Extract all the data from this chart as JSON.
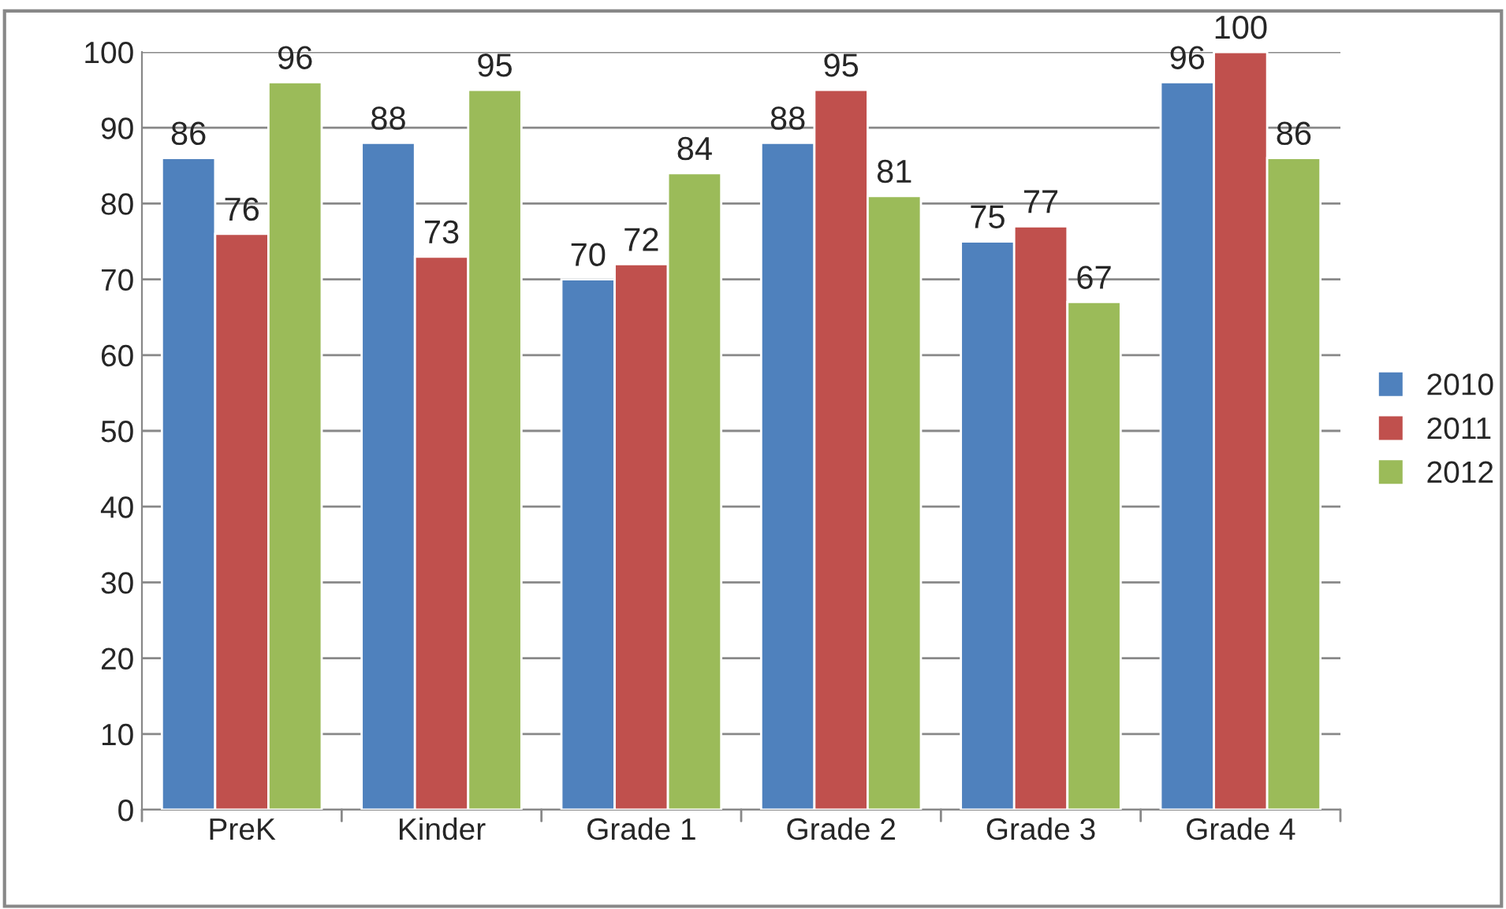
{
  "chart_data": {
    "type": "bar",
    "categories": [
      "PreK",
      "Kinder",
      "Grade 1",
      "Grade 2",
      "Grade 3",
      "Grade 4"
    ],
    "series": [
      {
        "name": "2010",
        "color": "#4f81bd",
        "values": [
          86,
          88,
          70,
          88,
          75,
          96
        ]
      },
      {
        "name": "2011",
        "color": "#c0504d",
        "values": [
          76,
          73,
          72,
          95,
          77,
          100
        ]
      },
      {
        "name": "2012",
        "color": "#9bbb59",
        "values": [
          96,
          95,
          84,
          81,
          67,
          86
        ]
      }
    ],
    "ylim": [
      0,
      100
    ],
    "yticks": [
      0,
      10,
      20,
      30,
      40,
      50,
      60,
      70,
      80,
      90,
      100
    ],
    "grid": "y",
    "legend": "right",
    "data_labels": true
  }
}
